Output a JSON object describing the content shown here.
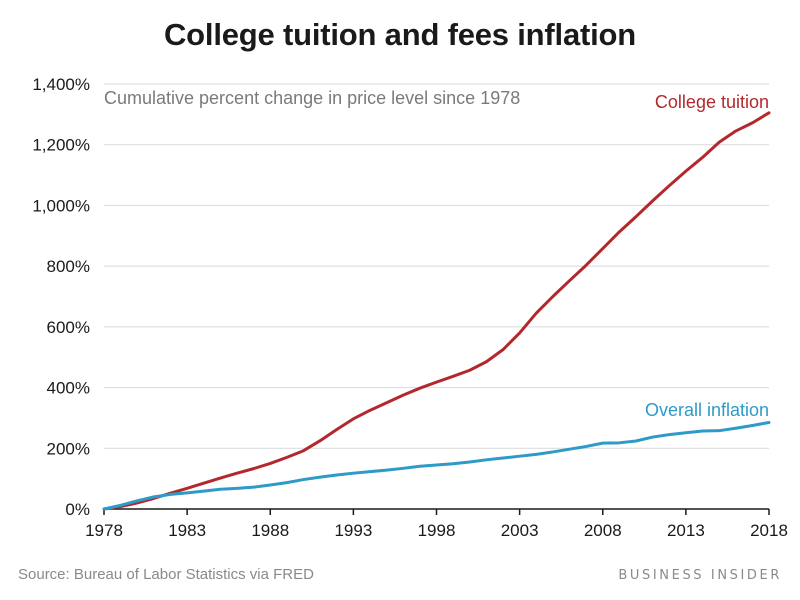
{
  "title": "College tuition and fees inflation",
  "source": "Source: Bureau of Labor Statistics via FRED",
  "brand": "BUSINESS INSIDER",
  "colors": {
    "college_tuition": "#b3282d",
    "overall_inflation": "#2e9ac8",
    "grid": "#d9d9d9",
    "axis": "#1a1a1a"
  },
  "chart_data": {
    "type": "line",
    "title": "College tuition and fees inflation",
    "subtitle": "Cumulative percent change in price level since 1978",
    "xlabel": "",
    "ylabel": "",
    "xlim": [
      1978,
      2018
    ],
    "ylim": [
      0,
      1400
    ],
    "x_ticks": [
      1978,
      1983,
      1988,
      1993,
      1998,
      2003,
      2008,
      2013,
      2018
    ],
    "x_tick_labels": [
      "1978",
      "1983",
      "1988",
      "1993",
      "1998",
      "2003",
      "2008",
      "2013",
      "2018"
    ],
    "y_ticks": [
      0,
      200,
      400,
      600,
      800,
      1000,
      1200,
      1400
    ],
    "y_tick_labels": [
      "0%",
      "200%",
      "400%",
      "600%",
      "800%",
      "1,000%",
      "1,200%",
      "1,400%"
    ],
    "grid": true,
    "legend": "direct labels at line ends",
    "x": [
      1978,
      1979,
      1980,
      1981,
      1982,
      1983,
      1984,
      1985,
      1986,
      1987,
      1988,
      1989,
      1990,
      1991,
      1992,
      1993,
      1994,
      1995,
      1996,
      1997,
      1998,
      1999,
      2000,
      2001,
      2002,
      2003,
      2004,
      2005,
      2006,
      2007,
      2008,
      2009,
      2010,
      2011,
      2012,
      2013,
      2014,
      2015,
      2016,
      2017,
      2018
    ],
    "series": [
      {
        "name": "College tuition",
        "values": [
          0,
          8,
          20,
          35,
          52,
          68,
          85,
          102,
          118,
          133,
          150,
          170,
          192,
          225,
          262,
          297,
          325,
          350,
          375,
          398,
          418,
          437,
          457,
          485,
          525,
          580,
          645,
          700,
          752,
          803,
          858,
          913,
          963,
          1015,
          1065,
          1113,
          1158,
          1208,
          1245,
          1272,
          1305
        ]
      },
      {
        "name": "Overall inflation",
        "values": [
          0,
          12,
          27,
          40,
          48,
          53,
          59,
          65,
          68,
          72,
          79,
          87,
          97,
          105,
          112,
          118,
          123,
          128,
          134,
          141,
          145,
          149,
          155,
          162,
          168,
          174,
          180,
          188,
          197,
          206,
          217,
          218,
          224,
          237,
          245,
          251,
          257,
          258,
          266,
          275,
          285
        ]
      }
    ]
  }
}
